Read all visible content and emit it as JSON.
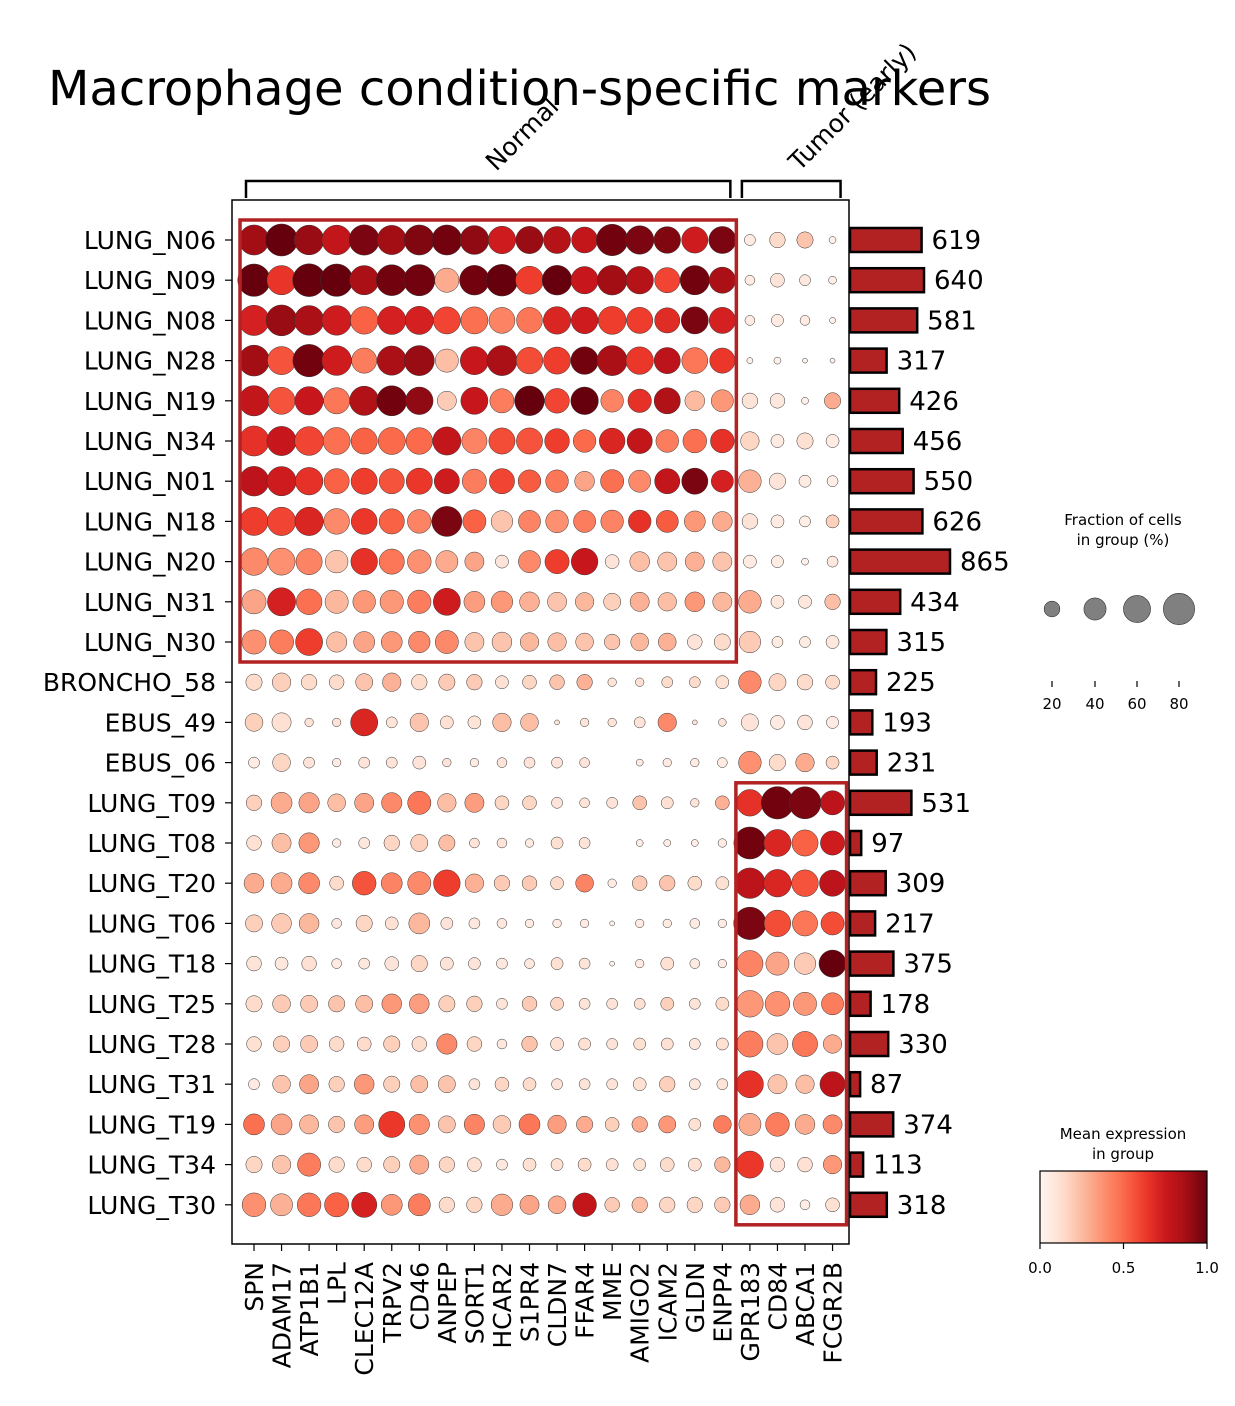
{
  "chart_data": {
    "type": "dotplot",
    "title": "Macrophage condition-specific markers",
    "groups": [
      "LUNG_N06",
      "LUNG_N09",
      "LUNG_N08",
      "LUNG_N28",
      "LUNG_N19",
      "LUNG_N34",
      "LUNG_N01",
      "LUNG_N18",
      "LUNG_N20",
      "LUNG_N31",
      "LUNG_N30",
      "BRONCHO_58",
      "EBUS_49",
      "EBUS_06",
      "LUNG_T09",
      "LUNG_T08",
      "LUNG_T20",
      "LUNG_T06",
      "LUNG_T18",
      "LUNG_T25",
      "LUNG_T28",
      "LUNG_T31",
      "LUNG_T19",
      "LUNG_T34",
      "LUNG_T30"
    ],
    "genes": [
      "SPN",
      "ADAM17",
      "ATP1B1",
      "LPL",
      "CLEC12A",
      "TRPV2",
      "CD46",
      "ANPEP",
      "SORT1",
      "HCAR2",
      "S1PR4",
      "CLDN7",
      "FFAR4",
      "MME",
      "AMIGO2",
      "ICAM2",
      "GLDN",
      "ENPP4",
      "GPR183",
      "CD84",
      "ABCA1",
      "FCGR2B"
    ],
    "gene_groups": [
      {
        "label": "Normal",
        "start": 0,
        "end": 17
      },
      {
        "label": "Tumor (early)",
        "start": 18,
        "end": 21
      }
    ],
    "highlight_boxes": [
      {
        "rows": [
          0,
          10
        ],
        "cols": [
          0,
          17
        ]
      },
      {
        "rows": [
          14,
          24
        ],
        "cols": [
          18,
          21
        ]
      }
    ],
    "cell_counts": [
      619,
      640,
      581,
      317,
      426,
      456,
      550,
      626,
      865,
      434,
      315,
      225,
      193,
      231,
      531,
      97,
      309,
      217,
      375,
      178,
      330,
      87,
      374,
      113,
      318
    ],
    "fraction": [
      [
        74,
        84,
        72,
        72,
        75,
        70,
        74,
        74,
        68,
        62,
        61,
        60,
        55,
        81,
        66,
        58,
        56,
        60,
        10,
        20,
        22,
        4
      ],
      [
        86,
        70,
        88,
        86,
        70,
        78,
        80,
        48,
        72,
        82,
        64,
        72,
        61,
        72,
        62,
        52,
        70,
        56,
        8,
        16,
        10,
        5
      ],
      [
        75,
        78,
        72,
        72,
        62,
        65,
        65,
        60,
        60,
        55,
        55,
        62,
        58,
        64,
        56,
        52,
        60,
        56,
        8,
        12,
        8,
        3
      ],
      [
        78,
        65,
        86,
        72,
        52,
        70,
        74,
        44,
        65,
        74,
        58,
        60,
        62,
        74,
        62,
        56,
        55,
        52,
        3,
        4,
        2,
        2
      ],
      [
        75,
        60,
        66,
        56,
        70,
        74,
        62,
        30,
        60,
        48,
        72,
        50,
        62,
        42,
        45,
        56,
        32,
        40,
        20,
        18,
        4,
        22
      ],
      [
        74,
        70,
        68,
        60,
        56,
        60,
        58,
        65,
        52,
        56,
        56,
        50,
        42,
        54,
        52,
        42,
        46,
        46,
        28,
        14,
        22,
        14
      ],
      [
        72,
        70,
        62,
        52,
        56,
        52,
        56,
        52,
        48,
        52,
        42,
        42,
        32,
        44,
        40,
        52,
        56,
        40,
        42,
        22,
        12,
        10
      ],
      [
        65,
        66,
        66,
        54,
        55,
        52,
        46,
        74,
        44,
        38,
        40,
        42,
        40,
        42,
        42,
        40,
        36,
        32,
        20,
        14,
        10,
        14
      ],
      [
        62,
        60,
        56,
        42,
        58,
        52,
        46,
        40,
        30,
        14,
        40,
        48,
        58,
        16,
        32,
        30,
        30,
        30,
        14,
        12,
        4,
        10
      ],
      [
        48,
        65,
        54,
        44,
        42,
        45,
        45,
        60,
        36,
        38,
        32,
        30,
        28,
        24,
        30,
        28,
        32,
        30,
        42,
        14,
        14,
        20
      ],
      [
        48,
        48,
        60,
        34,
        36,
        36,
        38,
        44,
        30,
        32,
        28,
        28,
        26,
        20,
        26,
        26,
        18,
        22,
        38,
        10,
        10,
        14
      ],
      [
        22,
        28,
        20,
        18,
        24,
        28,
        20,
        22,
        20,
        14,
        16,
        18,
        20,
        6,
        6,
        10,
        10,
        14,
        42,
        24,
        20,
        16
      ],
      [
        26,
        30,
        6,
        6,
        60,
        10,
        28,
        14,
        14,
        28,
        26,
        2,
        6,
        6,
        10,
        28,
        2,
        5,
        24,
        16,
        18,
        12
      ],
      [
        10,
        26,
        10,
        6,
        10,
        10,
        14,
        6,
        6,
        8,
        10,
        10,
        8,
        0,
        4,
        6,
        6,
        8,
        42,
        22,
        28,
        14
      ],
      [
        20,
        36,
        34,
        26,
        30,
        34,
        44,
        28,
        30,
        16,
        16,
        10,
        8,
        10,
        16,
        12,
        6,
        16,
        58,
        86,
        84,
        48
      ],
      [
        18,
        30,
        34,
        6,
        10,
        20,
        24,
        22,
        8,
        8,
        6,
        12,
        10,
        0,
        4,
        4,
        4,
        6,
        84,
        60,
        56,
        48
      ],
      [
        32,
        36,
        36,
        16,
        46,
        36,
        44,
        58,
        28,
        20,
        18,
        14,
        26,
        6,
        18,
        20,
        16,
        14,
        76,
        62,
        58,
        56
      ],
      [
        24,
        32,
        32,
        8,
        22,
        14,
        36,
        12,
        10,
        8,
        6,
        6,
        6,
        2,
        6,
        6,
        8,
        6,
        86,
        58,
        52,
        44
      ],
      [
        18,
        14,
        18,
        8,
        10,
        16,
        22,
        14,
        12,
        10,
        8,
        12,
        10,
        2,
        6,
        14,
        8,
        6,
        56,
        44,
        38,
        60
      ],
      [
        22,
        26,
        24,
        22,
        24,
        32,
        32,
        22,
        20,
        10,
        18,
        14,
        10,
        10,
        10,
        14,
        10,
        14,
        58,
        50,
        44,
        40
      ],
      [
        18,
        22,
        24,
        18,
        16,
        22,
        18,
        34,
        18,
        8,
        20,
        14,
        12,
        10,
        12,
        12,
        10,
        12,
        56,
        36,
        52,
        28
      ],
      [
        10,
        26,
        30,
        20,
        32,
        22,
        24,
        24,
        10,
        16,
        14,
        10,
        10,
        10,
        14,
        20,
        10,
        10,
        60,
        30,
        28,
        52
      ],
      [
        36,
        36,
        30,
        22,
        30,
        56,
        34,
        24,
        34,
        26,
        36,
        28,
        22,
        16,
        20,
        24,
        12,
        26,
        40,
        46,
        32,
        30
      ],
      [
        22,
        28,
        44,
        20,
        18,
        22,
        30,
        20,
        16,
        10,
        14,
        12,
        14,
        12,
        12,
        16,
        14,
        20,
        60,
        18,
        18,
        28
      ],
      [
        46,
        40,
        46,
        48,
        52,
        36,
        40,
        20,
        20,
        38,
        30,
        26,
        46,
        18,
        20,
        20,
        20,
        20,
        32,
        18,
        8,
        16
      ]
    ],
    "expression": [
      [
        0.88,
        1.0,
        0.9,
        0.78,
        0.96,
        0.88,
        0.95,
        0.98,
        0.92,
        0.74,
        0.9,
        0.82,
        0.78,
        0.98,
        0.96,
        0.95,
        0.74,
        0.96,
        0.06,
        0.14,
        0.22,
        0.03
      ],
      [
        1.0,
        0.65,
        1.0,
        1.0,
        0.86,
        0.98,
        0.98,
        0.3,
        0.98,
        1.0,
        0.62,
        1.0,
        0.76,
        0.88,
        0.82,
        0.6,
        0.98,
        0.86,
        0.05,
        0.1,
        0.08,
        0.04
      ],
      [
        0.72,
        0.9,
        0.86,
        0.74,
        0.52,
        0.72,
        0.72,
        0.6,
        0.48,
        0.42,
        0.46,
        0.7,
        0.74,
        0.62,
        0.62,
        0.68,
        0.96,
        0.72,
        0.05,
        0.06,
        0.06,
        0.03
      ],
      [
        0.88,
        0.56,
        0.98,
        0.74,
        0.44,
        0.86,
        0.9,
        0.24,
        0.76,
        0.86,
        0.58,
        0.62,
        0.98,
        0.86,
        0.64,
        0.8,
        0.46,
        0.64,
        0.03,
        0.03,
        0.03,
        0.03
      ],
      [
        0.78,
        0.56,
        0.76,
        0.46,
        0.84,
        0.98,
        0.92,
        0.2,
        0.76,
        0.44,
        1.0,
        0.6,
        1.0,
        0.42,
        0.66,
        0.84,
        0.25,
        0.36,
        0.1,
        0.08,
        0.03,
        0.3
      ],
      [
        0.66,
        0.76,
        0.6,
        0.48,
        0.52,
        0.5,
        0.5,
        0.78,
        0.42,
        0.58,
        0.56,
        0.62,
        0.5,
        0.7,
        0.78,
        0.44,
        0.48,
        0.66,
        0.16,
        0.06,
        0.12,
        0.06
      ],
      [
        0.8,
        0.74,
        0.66,
        0.52,
        0.62,
        0.56,
        0.64,
        0.74,
        0.44,
        0.6,
        0.54,
        0.46,
        0.32,
        0.48,
        0.4,
        0.78,
        0.96,
        0.72,
        0.28,
        0.1,
        0.06,
        0.04
      ],
      [
        0.62,
        0.6,
        0.7,
        0.4,
        0.64,
        0.52,
        0.42,
        0.96,
        0.52,
        0.22,
        0.42,
        0.38,
        0.44,
        0.42,
        0.66,
        0.54,
        0.36,
        0.3,
        0.1,
        0.06,
        0.04,
        0.18
      ],
      [
        0.4,
        0.38,
        0.42,
        0.22,
        0.66,
        0.46,
        0.38,
        0.3,
        0.32,
        0.1,
        0.4,
        0.62,
        0.76,
        0.1,
        0.24,
        0.22,
        0.28,
        0.22,
        0.06,
        0.05,
        0.03,
        0.08
      ],
      [
        0.32,
        0.72,
        0.48,
        0.26,
        0.36,
        0.36,
        0.44,
        0.74,
        0.34,
        0.36,
        0.28,
        0.22,
        0.26,
        0.18,
        0.28,
        0.24,
        0.36,
        0.26,
        0.3,
        0.08,
        0.08,
        0.24
      ],
      [
        0.38,
        0.44,
        0.62,
        0.24,
        0.32,
        0.36,
        0.4,
        0.4,
        0.22,
        0.22,
        0.26,
        0.24,
        0.22,
        0.22,
        0.26,
        0.28,
        0.1,
        0.14,
        0.2,
        0.06,
        0.06,
        0.08
      ],
      [
        0.14,
        0.18,
        0.14,
        0.14,
        0.22,
        0.28,
        0.14,
        0.2,
        0.2,
        0.12,
        0.16,
        0.22,
        0.28,
        0.1,
        0.12,
        0.14,
        0.14,
        0.12,
        0.4,
        0.16,
        0.14,
        0.14
      ],
      [
        0.18,
        0.12,
        0.1,
        0.1,
        0.7,
        0.1,
        0.22,
        0.12,
        0.1,
        0.24,
        0.24,
        0.1,
        0.1,
        0.1,
        0.1,
        0.4,
        0.1,
        0.1,
        0.1,
        0.06,
        0.1,
        0.06
      ],
      [
        0.06,
        0.16,
        0.1,
        0.06,
        0.1,
        0.1,
        0.1,
        0.1,
        0.06,
        0.1,
        0.1,
        0.1,
        0.1,
        0.0,
        0.06,
        0.06,
        0.06,
        0.06,
        0.38,
        0.14,
        0.3,
        0.16
      ],
      [
        0.18,
        0.3,
        0.32,
        0.24,
        0.32,
        0.4,
        0.46,
        0.24,
        0.34,
        0.16,
        0.16,
        0.1,
        0.1,
        0.1,
        0.22,
        0.12,
        0.1,
        0.28,
        0.66,
        0.98,
        0.96,
        0.8
      ],
      [
        0.12,
        0.24,
        0.36,
        0.06,
        0.08,
        0.16,
        0.18,
        0.24,
        0.1,
        0.1,
        0.06,
        0.12,
        0.1,
        0.0,
        0.04,
        0.04,
        0.04,
        0.06,
        0.98,
        0.7,
        0.52,
        0.74
      ],
      [
        0.3,
        0.3,
        0.4,
        0.14,
        0.56,
        0.42,
        0.4,
        0.62,
        0.28,
        0.2,
        0.2,
        0.14,
        0.42,
        0.06,
        0.2,
        0.22,
        0.14,
        0.12,
        0.8,
        0.7,
        0.56,
        0.8
      ],
      [
        0.18,
        0.2,
        0.26,
        0.08,
        0.16,
        0.12,
        0.26,
        0.1,
        0.08,
        0.08,
        0.06,
        0.06,
        0.06,
        0.02,
        0.06,
        0.06,
        0.06,
        0.06,
        0.96,
        0.58,
        0.46,
        0.58
      ],
      [
        0.1,
        0.08,
        0.12,
        0.06,
        0.08,
        0.1,
        0.16,
        0.1,
        0.1,
        0.08,
        0.08,
        0.12,
        0.1,
        0.02,
        0.06,
        0.12,
        0.06,
        0.06,
        0.42,
        0.32,
        0.2,
        1.0
      ],
      [
        0.14,
        0.2,
        0.2,
        0.22,
        0.24,
        0.36,
        0.34,
        0.18,
        0.18,
        0.1,
        0.2,
        0.16,
        0.1,
        0.1,
        0.12,
        0.18,
        0.1,
        0.14,
        0.36,
        0.38,
        0.36,
        0.44
      ],
      [
        0.12,
        0.18,
        0.2,
        0.14,
        0.14,
        0.18,
        0.14,
        0.4,
        0.16,
        0.08,
        0.22,
        0.12,
        0.12,
        0.1,
        0.12,
        0.12,
        0.08,
        0.12,
        0.44,
        0.22,
        0.46,
        0.3
      ],
      [
        0.06,
        0.22,
        0.32,
        0.18,
        0.36,
        0.18,
        0.24,
        0.22,
        0.1,
        0.16,
        0.14,
        0.1,
        0.1,
        0.1,
        0.12,
        0.18,
        0.08,
        0.1,
        0.66,
        0.22,
        0.24,
        0.8
      ],
      [
        0.48,
        0.32,
        0.26,
        0.22,
        0.34,
        0.64,
        0.38,
        0.22,
        0.42,
        0.2,
        0.46,
        0.34,
        0.3,
        0.18,
        0.3,
        0.36,
        0.12,
        0.44,
        0.3,
        0.44,
        0.3,
        0.4
      ],
      [
        0.16,
        0.22,
        0.44,
        0.14,
        0.14,
        0.18,
        0.3,
        0.16,
        0.12,
        0.08,
        0.12,
        0.12,
        0.14,
        0.12,
        0.12,
        0.14,
        0.12,
        0.26,
        0.64,
        0.1,
        0.12,
        0.36
      ],
      [
        0.38,
        0.28,
        0.46,
        0.52,
        0.72,
        0.36,
        0.44,
        0.14,
        0.16,
        0.3,
        0.32,
        0.3,
        0.78,
        0.2,
        0.24,
        0.16,
        0.16,
        0.2,
        0.3,
        0.1,
        0.04,
        0.12
      ]
    ],
    "size_legend": {
      "title": "Fraction of cells\nin group (%)",
      "ticks": [
        20,
        40,
        60,
        80
      ]
    },
    "color_legend": {
      "title": "Mean expression\nin group",
      "range": [
        0.0,
        1.0
      ],
      "ticks": [
        "0.0",
        "0.5",
        "1.0"
      ],
      "colormap": "Reds"
    },
    "colors": {
      "bar_fill": "#b22222",
      "highlight_box": "#b22222",
      "dot_edge": "#333333"
    }
  }
}
